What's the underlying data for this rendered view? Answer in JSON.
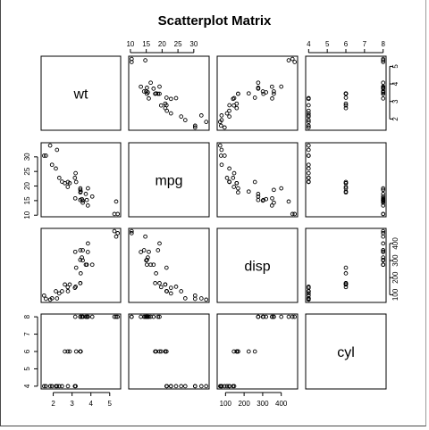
{
  "chart_data": {
    "type": "scatter",
    "title": "Scatterplot Matrix",
    "variables": [
      "wt",
      "mpg",
      "disp",
      "cyl"
    ],
    "ranges": {
      "wt": [
        1.513,
        5.424
      ],
      "mpg": [
        10.4,
        33.9
      ],
      "disp": [
        71.1,
        472
      ],
      "cyl": [
        4,
        8
      ]
    },
    "ticks": {
      "wt": [
        2,
        3,
        4,
        5
      ],
      "mpg": [
        10,
        15,
        20,
        25,
        30
      ],
      "disp": [
        100,
        200,
        300,
        400
      ],
      "cyl": [
        4,
        5,
        6,
        7,
        8
      ]
    },
    "grid": false,
    "legend": "none",
    "marker": "open-circle",
    "color": "#000000",
    "points": [
      {
        "wt": 2.62,
        "mpg": 21.0,
        "disp": 160.0,
        "cyl": 6
      },
      {
        "wt": 2.875,
        "mpg": 21.0,
        "disp": 160.0,
        "cyl": 6
      },
      {
        "wt": 2.32,
        "mpg": 22.8,
        "disp": 108.0,
        "cyl": 4
      },
      {
        "wt": 3.215,
        "mpg": 21.4,
        "disp": 258.0,
        "cyl": 6
      },
      {
        "wt": 3.44,
        "mpg": 18.7,
        "disp": 360.0,
        "cyl": 8
      },
      {
        "wt": 3.46,
        "mpg": 18.1,
        "disp": 225.0,
        "cyl": 6
      },
      {
        "wt": 3.57,
        "mpg": 14.3,
        "disp": 360.0,
        "cyl": 8
      },
      {
        "wt": 3.19,
        "mpg": 24.4,
        "disp": 146.7,
        "cyl": 4
      },
      {
        "wt": 3.15,
        "mpg": 22.8,
        "disp": 140.8,
        "cyl": 4
      },
      {
        "wt": 3.44,
        "mpg": 19.2,
        "disp": 167.6,
        "cyl": 6
      },
      {
        "wt": 3.44,
        "mpg": 17.8,
        "disp": 167.6,
        "cyl": 6
      },
      {
        "wt": 4.07,
        "mpg": 16.4,
        "disp": 275.8,
        "cyl": 8
      },
      {
        "wt": 3.73,
        "mpg": 17.3,
        "disp": 275.8,
        "cyl": 8
      },
      {
        "wt": 3.78,
        "mpg": 15.2,
        "disp": 275.8,
        "cyl": 8
      },
      {
        "wt": 5.25,
        "mpg": 10.4,
        "disp": 472.0,
        "cyl": 8
      },
      {
        "wt": 5.424,
        "mpg": 10.4,
        "disp": 460.0,
        "cyl": 8
      },
      {
        "wt": 5.345,
        "mpg": 14.7,
        "disp": 440.0,
        "cyl": 8
      },
      {
        "wt": 2.2,
        "mpg": 32.4,
        "disp": 78.7,
        "cyl": 4
      },
      {
        "wt": 1.615,
        "mpg": 30.4,
        "disp": 75.7,
        "cyl": 4
      },
      {
        "wt": 1.835,
        "mpg": 33.9,
        "disp": 71.1,
        "cyl": 4
      },
      {
        "wt": 2.465,
        "mpg": 21.5,
        "disp": 120.1,
        "cyl": 4
      },
      {
        "wt": 3.52,
        "mpg": 15.5,
        "disp": 318.0,
        "cyl": 8
      },
      {
        "wt": 3.435,
        "mpg": 15.2,
        "disp": 304.0,
        "cyl": 8
      },
      {
        "wt": 3.84,
        "mpg": 13.3,
        "disp": 350.0,
        "cyl": 8
      },
      {
        "wt": 3.845,
        "mpg": 19.2,
        "disp": 400.0,
        "cyl": 8
      },
      {
        "wt": 1.935,
        "mpg": 27.3,
        "disp": 79.0,
        "cyl": 4
      },
      {
        "wt": 2.14,
        "mpg": 26.0,
        "disp": 120.3,
        "cyl": 4
      },
      {
        "wt": 1.513,
        "mpg": 30.4,
        "disp": 95.1,
        "cyl": 4
      },
      {
        "wt": 3.17,
        "mpg": 15.8,
        "disp": 351.0,
        "cyl": 8
      },
      {
        "wt": 2.77,
        "mpg": 19.7,
        "disp": 145.0,
        "cyl": 6
      },
      {
        "wt": 3.57,
        "mpg": 15.0,
        "disp": 301.0,
        "cyl": 8
      },
      {
        "wt": 2.78,
        "mpg": 21.4,
        "disp": 121.0,
        "cyl": 4
      }
    ]
  }
}
